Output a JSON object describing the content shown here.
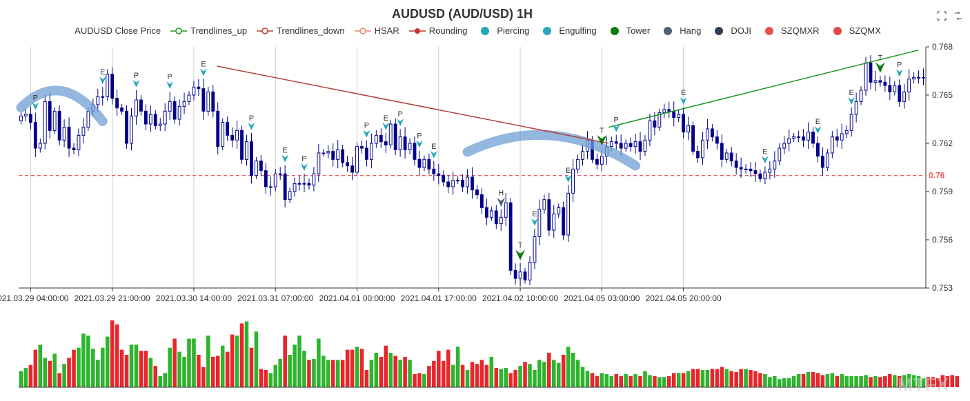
{
  "chart_title": "AUDUSD (AUD/USD) 1H",
  "legend": [
    {
      "label": "AUDUSD Close Price",
      "kind": "none",
      "color": "#00008b"
    },
    {
      "label": "Trendlines_up",
      "kind": "line-circle",
      "color": "#1a9a1a"
    },
    {
      "label": "Trendlines_down",
      "kind": "line-circle",
      "color": "#b5403a"
    },
    {
      "label": "HSAR",
      "kind": "line-circle",
      "color": "#f08070"
    },
    {
      "label": "Rounding",
      "kind": "line-dot",
      "color": "#c23531"
    },
    {
      "label": "Piercing",
      "kind": "dot",
      "color": "#1fa7b8"
    },
    {
      "label": "Engulfing",
      "kind": "dot",
      "color": "#2aa5c0"
    },
    {
      "label": "Tower",
      "kind": "dot",
      "color": "#0f7a0f"
    },
    {
      "label": "Hang",
      "kind": "dot",
      "color": "#50606e"
    },
    {
      "label": "DOJI",
      "kind": "dot",
      "color": "#2f4054"
    },
    {
      "label": "SZQMXR",
      "kind": "dot",
      "color": "#e8504a"
    },
    {
      "label": "SZQMX",
      "kind": "dot",
      "color": "#e0474a"
    }
  ],
  "toolbox": [
    {
      "name": "zoom-icon"
    },
    {
      "name": "restore-icon"
    }
  ],
  "watermark": "MTFX",
  "chart_data": {
    "type": "candlestick",
    "title": "AUDUSD (AUD/USD) 1H",
    "interval": "1H",
    "ylim": [
      0.753,
      0.768
    ],
    "y_ticks": [
      "0.753",
      "0.756",
      "0.759",
      "0.762",
      "0.765",
      "0.768"
    ],
    "x_tick_labels": [
      "2021.03.29 04:00:00",
      "2021.03.29 21:00:00",
      "2021.03.30 14:00:00",
      "2021.03.31 07:00:00",
      "2021.04.01 00:00:00",
      "2021.04.01 17:00:00",
      "2021.04.02 10:00:00",
      "2021.04.05 03:00:00",
      "2021.04.05 20:00:00"
    ],
    "x_tick_index": [
      2,
      19,
      36,
      53,
      70,
      87,
      104,
      121,
      138
    ],
    "colors": {
      "up": "#ffffff",
      "up_border": "#00008b",
      "down": "#00008b",
      "vol_up": "#2db52d",
      "vol_down": "#e8262b",
      "trend_up": "#1a9a1a",
      "trend_down": "#b5403a",
      "hsar": "#f05a5a",
      "rounding": "#6f9fd4",
      "grid": "#cccccc",
      "axis": "#333333",
      "piercing": "#1fa7b8",
      "tower": "#0f7a0f",
      "hang": "#50606e"
    },
    "closes": [
      0.7637,
      0.7638,
      0.7633,
      0.7617,
      0.762,
      0.7646,
      0.7628,
      0.764,
      0.7622,
      0.763,
      0.7617,
      0.7616,
      0.7625,
      0.763,
      0.764,
      0.7644,
      0.7649,
      0.7649,
      0.7663,
      0.7648,
      0.7642,
      0.764,
      0.762,
      0.7637,
      0.7647,
      0.764,
      0.7632,
      0.7638,
      0.7631,
      0.7632,
      0.764,
      0.7646,
      0.7635,
      0.7643,
      0.7646,
      0.765,
      0.7655,
      0.7654,
      0.764,
      0.7652,
      0.764,
      0.7618,
      0.7633,
      0.7625,
      0.7622,
      0.7628,
      0.761,
      0.7621,
      0.76,
      0.7609,
      0.7603,
      0.7593,
      0.7593,
      0.7601,
      0.7601,
      0.7585,
      0.759,
      0.7595,
      0.7595,
      0.7595,
      0.7594,
      0.7601,
      0.7614,
      0.7614,
      0.7615,
      0.761,
      0.7616,
      0.7608,
      0.7606,
      0.7602,
      0.7618,
      0.7617,
      0.761,
      0.762,
      0.7625,
      0.7621,
      0.7619,
      0.7632,
      0.7616,
      0.7624,
      0.7616,
      0.762,
      0.761,
      0.7605,
      0.761,
      0.7604,
      0.7601,
      0.76,
      0.7596,
      0.7593,
      0.7597,
      0.7597,
      0.7593,
      0.7599,
      0.7591,
      0.7588,
      0.758,
      0.7574,
      0.7578,
      0.757,
      0.7574,
      0.7583,
      0.7541,
      0.7536,
      0.754,
      0.7535,
      0.7546,
      0.7562,
      0.7579,
      0.7585,
      0.7566,
      0.7576,
      0.758,
      0.7563,
      0.7589,
      0.7604,
      0.761,
      0.7615,
      0.7622,
      0.761,
      0.7607,
      0.7612,
      0.7618,
      0.7621,
      0.762,
      0.7617,
      0.762,
      0.7618,
      0.7621,
      0.7615,
      0.7622,
      0.7634,
      0.763,
      0.7639,
      0.7641,
      0.764,
      0.7636,
      0.7638,
      0.7627,
      0.7631,
      0.7615,
      0.7611,
      0.7622,
      0.7629,
      0.7624,
      0.762,
      0.761,
      0.7614,
      0.7609,
      0.7605,
      0.7604,
      0.7604,
      0.7603,
      0.7601,
      0.7598,
      0.7602,
      0.7604,
      0.7609,
      0.7617,
      0.762,
      0.7623,
      0.7624,
      0.7624,
      0.7622,
      0.7627,
      0.762,
      0.7612,
      0.7605,
      0.7614,
      0.7624,
      0.7622,
      0.7626,
      0.7628,
      0.7638,
      0.7646,
      0.7653,
      0.767,
      0.7658,
      0.7659,
      0.7658,
      0.7656,
      0.7652,
      0.7656,
      0.7646,
      0.7652,
      0.766,
      0.7661,
      0.7661,
      0.7661
    ],
    "volumes": [
      16,
      19,
      22,
      37,
      42,
      29,
      26,
      33,
      14,
      23,
      29,
      37,
      39,
      53,
      51,
      38,
      27,
      39,
      50,
      66,
      62,
      37,
      32,
      42,
      42,
      36,
      36,
      29,
      21,
      11,
      14,
      39,
      48,
      35,
      30,
      48,
      48,
      32,
      20,
      51,
      30,
      31,
      41,
      35,
      52,
      51,
      63,
      65,
      39,
      55,
      18,
      17,
      14,
      22,
      28,
      51,
      32,
      42,
      51,
      36,
      27,
      28,
      48,
      31,
      27,
      27,
      27,
      27,
      37,
      37,
      40,
      38,
      17,
      27,
      34,
      30,
      41,
      34,
      31,
      27,
      30,
      27,
      13,
      14,
      13,
      21,
      26,
      36,
      26,
      37,
      22,
      40,
      22,
      17,
      25,
      23,
      27,
      22,
      30,
      19,
      18,
      19,
      14,
      17,
      21,
      25,
      23,
      17,
      27,
      25,
      34,
      27,
      24,
      32,
      40,
      34,
      27,
      20,
      16,
      14,
      11,
      14,
      13,
      11,
      13,
      11,
      13,
      11,
      13,
      11,
      16,
      12,
      11,
      10,
      10,
      11,
      14,
      14,
      14,
      16,
      18,
      18,
      17,
      17,
      18,
      18,
      20,
      18,
      16,
      15,
      18,
      18,
      17,
      16,
      14,
      13,
      10,
      11,
      8,
      9,
      9,
      11,
      13,
      13,
      15,
      15,
      14,
      12,
      13,
      14,
      11,
      13,
      11,
      11,
      11,
      11,
      12,
      10,
      11,
      10,
      11,
      13,
      12,
      11,
      12,
      13,
      12,
      11,
      9,
      10,
      10,
      9,
      12,
      11,
      12,
      11
    ],
    "hsar_level": 0.76,
    "hsar_label": "0.76",
    "trendlines": [
      {
        "name": "Trendlines_down",
        "from": [
          12,
          0.7668
        ],
        "to": [
          36,
          0.762
        ]
      },
      {
        "name": "Trendlines_up",
        "from": [
          36,
          0.763
        ],
        "to": [
          55,
          0.7678
        ]
      }
    ],
    "rounding": [
      {
        "start": 0,
        "end": 5,
        "shape": "top"
      },
      {
        "start": 31,
        "end": 42,
        "shape": "top"
      }
    ],
    "markers": [
      {
        "type": "Piercing",
        "label": "P",
        "index": 1
      },
      {
        "type": "Engulfing",
        "label": "E",
        "index": 5
      },
      {
        "type": "Piercing",
        "label": "P",
        "index": 7
      },
      {
        "type": "Piercing",
        "label": "P",
        "index": 9
      },
      {
        "type": "Engulfing",
        "label": "E",
        "index": 11
      },
      {
        "type": "Piercing",
        "label": "P",
        "index": 14
      },
      {
        "type": "Engulfing",
        "label": "E",
        "index": 16
      },
      {
        "type": "Piercing",
        "label": "P",
        "index": 17
      },
      {
        "type": "Piercing",
        "label": "P",
        "index": 21
      },
      {
        "type": "Engulfing",
        "label": "E",
        "index": 22
      },
      {
        "type": "Piercing",
        "label": "P",
        "index": 23
      },
      {
        "type": "Piercing",
        "label": "P",
        "index": 24
      },
      {
        "type": "Engulfing",
        "label": "E",
        "index": 25
      },
      {
        "type": "Hang",
        "label": "H",
        "index": 29
      },
      {
        "type": "Tower",
        "label": "T",
        "index": 30
      },
      {
        "type": "Engulfing",
        "label": "E",
        "index": 31
      },
      {
        "type": "Engulfing",
        "label": "E",
        "index": 33
      },
      {
        "type": "Tower",
        "label": "T",
        "index": 35
      },
      {
        "type": "Piercing",
        "label": "P",
        "index": 36
      },
      {
        "type": "Engulfing",
        "label": "E",
        "index": 40
      },
      {
        "type": "Engulfing",
        "label": "E",
        "index": 45
      },
      {
        "type": "Engulfing",
        "label": "E",
        "index": 48
      },
      {
        "type": "Engulfing",
        "label": "E",
        "index": 50
      },
      {
        "type": "Tower",
        "label": "T",
        "index": 52
      },
      {
        "type": "Piercing",
        "label": "P",
        "index": 53
      }
    ]
  }
}
